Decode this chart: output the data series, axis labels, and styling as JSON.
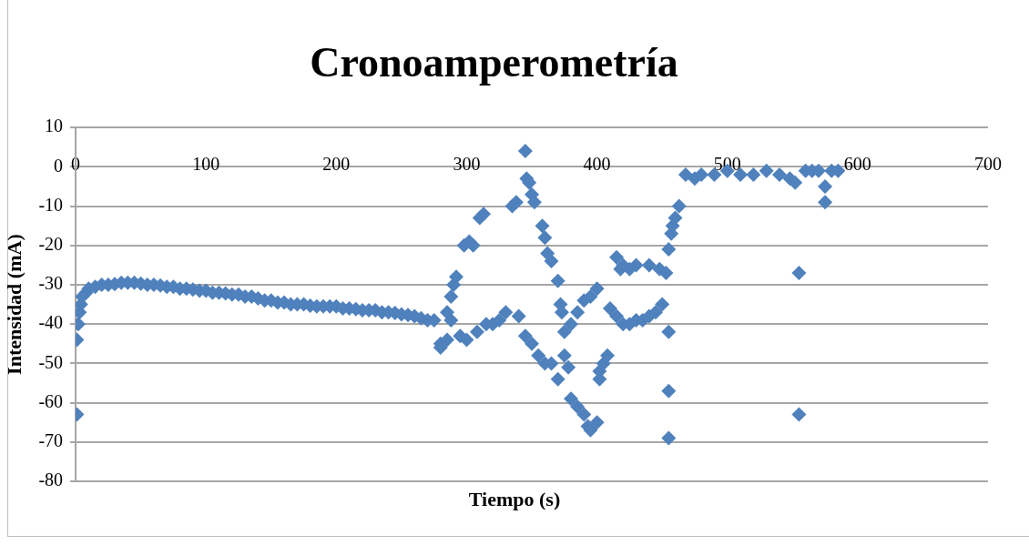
{
  "chart_data": {
    "type": "scatter",
    "title": "Cronoamperometría",
    "xlabel": "Tiempo (s)",
    "ylabel": "Intensidad (mA)",
    "xlim": [
      0,
      700
    ],
    "xticks": [
      0,
      100,
      200,
      300,
      400,
      500,
      600,
      700
    ],
    "ylim": [
      -80,
      10
    ],
    "yticks": [
      -80,
      -70,
      -60,
      -50,
      -40,
      -30,
      -20,
      -10,
      0,
      10
    ],
    "grid": "y",
    "legend": false,
    "marker": "diamond",
    "series": [
      {
        "color": "#4f81bd",
        "x": [
          1,
          1,
          2,
          3,
          4,
          5,
          8,
          10,
          15,
          20,
          25,
          30,
          35,
          40,
          45,
          50,
          55,
          60,
          65,
          70,
          75,
          80,
          85,
          90,
          95,
          100,
          105,
          110,
          115,
          120,
          125,
          130,
          135,
          140,
          145,
          150,
          155,
          160,
          165,
          170,
          175,
          180,
          185,
          190,
          195,
          200,
          205,
          210,
          215,
          220,
          225,
          230,
          235,
          240,
          245,
          250,
          255,
          260,
          265,
          270,
          275,
          280,
          280,
          285,
          285,
          288,
          290,
          292,
          288,
          295,
          300,
          298,
          302,
          305,
          310,
          313,
          308,
          315,
          320,
          325,
          330,
          335,
          338,
          340,
          345,
          346,
          348,
          350,
          352,
          345,
          350,
          355,
          358,
          360,
          362,
          365,
          360,
          365,
          370,
          370,
          372,
          373,
          375,
          375,
          378,
          380,
          380,
          385,
          390,
          393,
          395,
          400,
          385,
          390,
          395,
          400,
          402,
          402,
          405,
          408,
          410,
          415,
          420,
          425,
          430,
          435,
          440,
          445,
          450,
          415,
          420,
          418,
          425,
          430,
          440,
          448,
          453,
          455,
          455,
          455,
          455,
          457,
          458,
          460,
          463,
          468,
          475,
          480,
          490,
          500,
          510,
          520,
          530,
          540,
          548,
          552,
          555,
          555,
          560,
          565,
          570,
          575,
          575,
          580,
          585
        ],
        "values": [
          -63,
          -44,
          -40,
          -37,
          -35,
          -33,
          -32,
          -31,
          -30.5,
          -30,
          -30,
          -29.8,
          -29.5,
          -29.5,
          -29.5,
          -29.7,
          -30,
          -30,
          -30.2,
          -30.5,
          -30.5,
          -31,
          -31,
          -31.2,
          -31.5,
          -31.5,
          -32,
          -32,
          -32.2,
          -32.5,
          -32.5,
          -33,
          -33,
          -33.5,
          -34,
          -34,
          -34.5,
          -34.5,
          -35,
          -35,
          -35,
          -35.3,
          -35.5,
          -35.5,
          -35.5,
          -35.5,
          -36,
          -36,
          -36.2,
          -36.5,
          -36.5,
          -36.5,
          -37,
          -37,
          -37.2,
          -37.5,
          -37.7,
          -38,
          -38.5,
          -39,
          -39,
          -45,
          -46,
          -44,
          -37,
          -33,
          -30,
          -28,
          -39,
          -43,
          -44,
          -20,
          -19,
          -20,
          -13,
          -12,
          -42,
          -40,
          -40,
          -39,
          -37,
          -10,
          -9,
          -38,
          4,
          -3,
          -4,
          -7,
          -9,
          -43,
          -45,
          -48,
          -15,
          -18,
          -22,
          -24,
          -50,
          -50,
          -54,
          -29,
          -35,
          -37,
          -42,
          -48,
          -51,
          -40,
          -59,
          -61,
          -63,
          -66,
          -67,
          -65,
          -37,
          -34,
          -33,
          -31,
          -52,
          -54,
          -50,
          -48,
          -36,
          -38,
          -40,
          -40,
          -39,
          -39,
          -38,
          -37,
          -35,
          -23,
          -25,
          -26,
          -26,
          -25,
          -25,
          -26,
          -27,
          -42,
          -57,
          -69,
          -21,
          -17,
          -15,
          -13,
          -10,
          -2,
          -3,
          -2,
          -2,
          -1,
          -2,
          -2,
          -1,
          -2,
          -3,
          -4,
          -27,
          -63,
          -1,
          -1,
          -1,
          -5,
          -9,
          -1,
          -1
        ]
      }
    ]
  }
}
